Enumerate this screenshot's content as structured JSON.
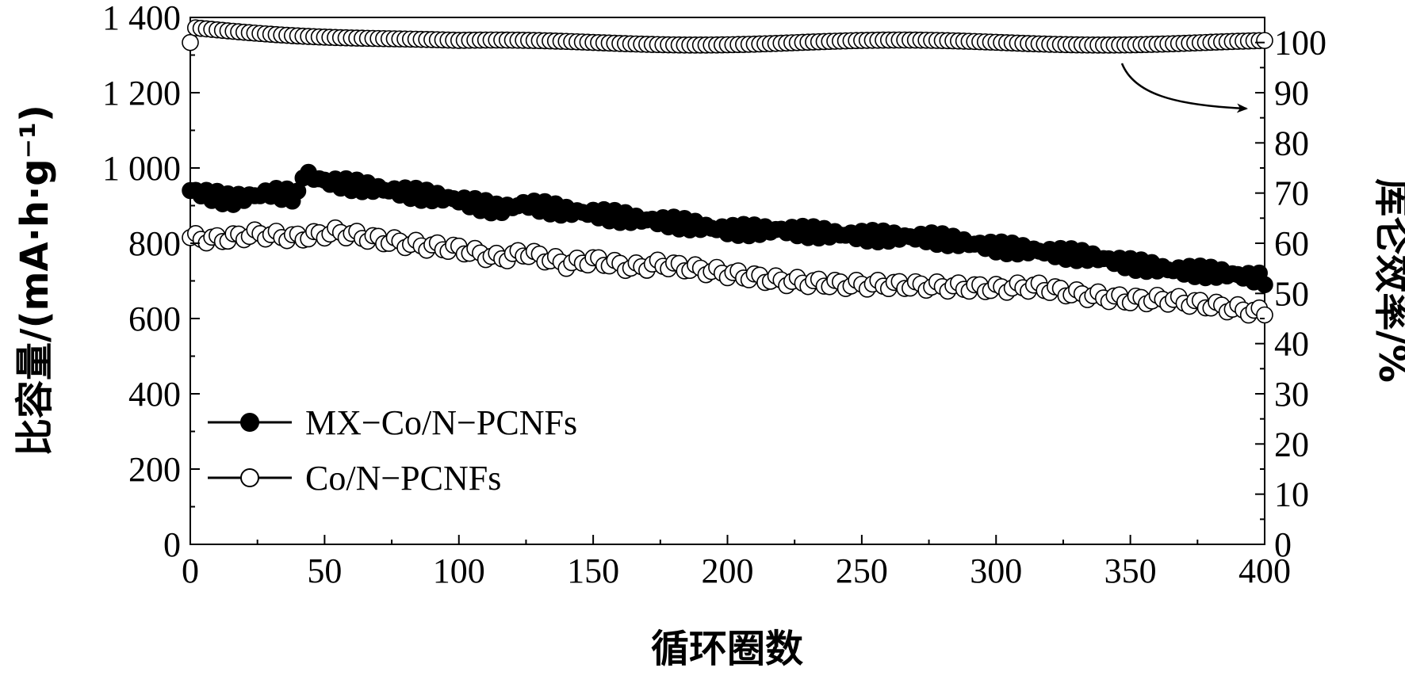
{
  "chart_data": {
    "type": "scatter",
    "xlabel": "循环圈数",
    "ylabel": "比容量/(mA·h·g⁻¹)",
    "y2label": "库仑效率/%",
    "xlim": [
      0,
      400
    ],
    "ylim": [
      0,
      1400
    ],
    "y2lim": [
      0,
      105
    ],
    "x_ticks": [
      "0",
      "50",
      "100",
      "150",
      "200",
      "250",
      "300",
      "350",
      "400"
    ],
    "y_ticks": [
      "0",
      "200",
      "400",
      "600",
      "800",
      "1 000",
      "1 200",
      "1 400"
    ],
    "y2_ticks": [
      "0",
      "10",
      "20",
      "30",
      "40",
      "50",
      "60",
      "70",
      "80",
      "90",
      "100"
    ],
    "grid": false,
    "legend_position": "lower-left",
    "series": [
      {
        "name": "MX−Co/N−PCNFs",
        "axis": "left",
        "marker": "filled-circle",
        "color": "#000000",
        "points": [
          [
            0,
            940
          ],
          [
            15,
            915
          ],
          [
            30,
            935
          ],
          [
            40,
            925
          ],
          [
            42,
            985
          ],
          [
            50,
            965
          ],
          [
            65,
            950
          ],
          [
            80,
            935
          ],
          [
            100,
            915
          ],
          [
            115,
            890
          ],
          [
            125,
            905
          ],
          [
            140,
            885
          ],
          [
            150,
            880
          ],
          [
            165,
            865
          ],
          [
            180,
            855
          ],
          [
            200,
            835
          ],
          [
            220,
            835
          ],
          [
            250,
            820
          ],
          [
            275,
            815
          ],
          [
            300,
            790
          ],
          [
            315,
            780
          ],
          [
            335,
            765
          ],
          [
            350,
            745
          ],
          [
            365,
            730
          ],
          [
            385,
            720
          ],
          [
            400,
            705
          ]
        ]
      },
      {
        "name": "Co/N−PCNFs",
        "axis": "left",
        "marker": "open-circle",
        "color": "#000000",
        "points": [
          [
            0,
            815
          ],
          [
            10,
            810
          ],
          [
            25,
            825
          ],
          [
            40,
            815
          ],
          [
            55,
            830
          ],
          [
            70,
            810
          ],
          [
            85,
            795
          ],
          [
            100,
            785
          ],
          [
            115,
            760
          ],
          [
            125,
            775
          ],
          [
            140,
            745
          ],
          [
            150,
            755
          ],
          [
            165,
            735
          ],
          [
            175,
            745
          ],
          [
            200,
            720
          ],
          [
            220,
            700
          ],
          [
            245,
            690
          ],
          [
            260,
            690
          ],
          [
            280,
            685
          ],
          [
            300,
            680
          ],
          [
            315,
            685
          ],
          [
            330,
            665
          ],
          [
            350,
            650
          ],
          [
            365,
            650
          ],
          [
            385,
            630
          ],
          [
            400,
            615
          ]
        ]
      },
      {
        "name": "",
        "axis": "right",
        "marker": "open-circle",
        "color": "#000000",
        "points": [
          [
            0,
            100
          ],
          [
            1,
            103
          ],
          [
            100,
            100
          ],
          [
            200,
            100
          ],
          [
            300,
            100
          ],
          [
            400,
            100
          ]
        ]
      }
    ],
    "legend": {
      "items": [
        {
          "label": "MX−Co/N−PCNFs",
          "marker": "filled-circle"
        },
        {
          "label": "Co/N−PCNFs",
          "marker": "open-circle"
        }
      ]
    },
    "annotation": {
      "type": "arrow",
      "from": [
        347,
        97
      ],
      "to": [
        395,
        87
      ],
      "points_to": "right-axis"
    }
  }
}
